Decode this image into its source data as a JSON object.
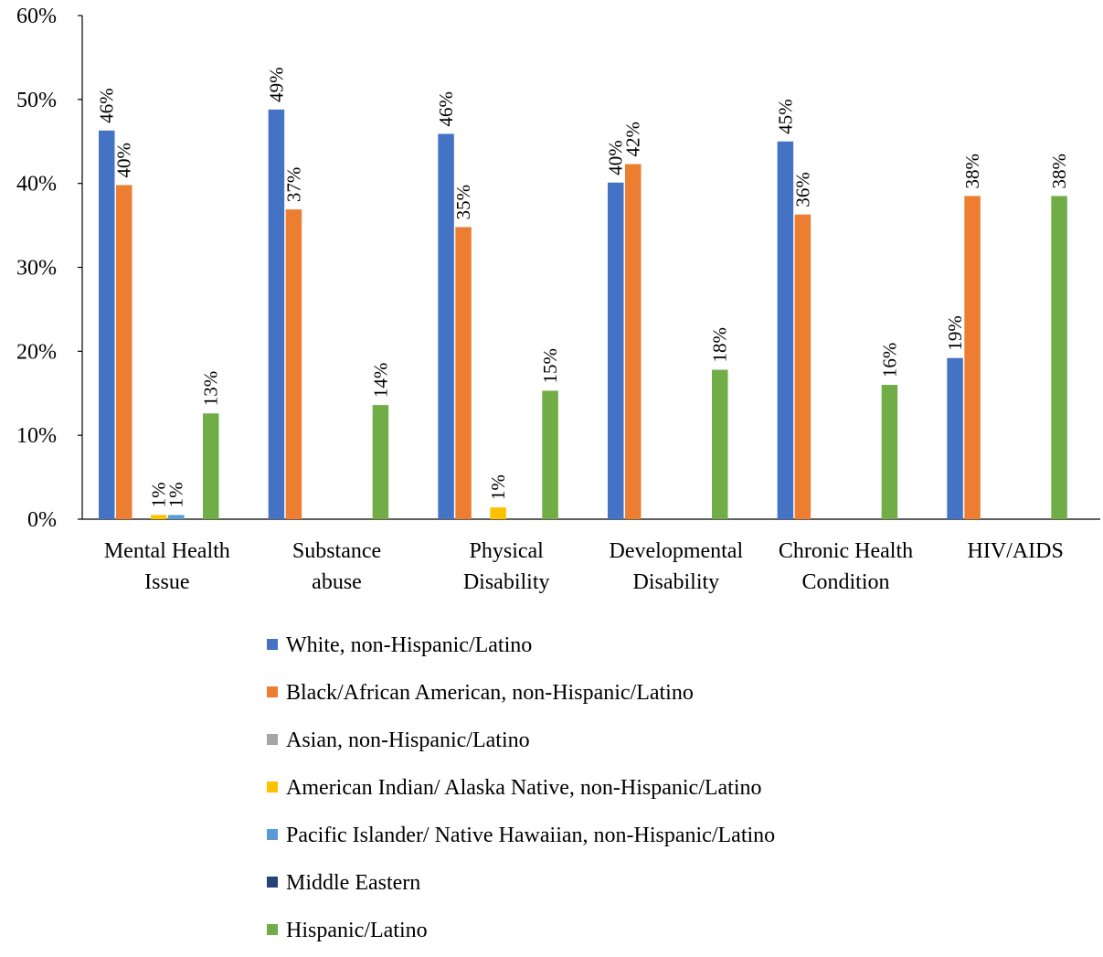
{
  "chart_data": {
    "type": "bar",
    "categories": [
      [
        "Mental Health",
        "Issue"
      ],
      [
        "Substance",
        "abuse"
      ],
      [
        "Physical",
        "Disability"
      ],
      [
        "Developmental",
        "Disability"
      ],
      [
        "Chronic Health",
        "Condition"
      ],
      [
        "HIV/AIDS"
      ]
    ],
    "ylim": [
      0,
      60
    ],
    "yticks": [
      "0%",
      "10%",
      "20%",
      "30%",
      "40%",
      "50%",
      "60%"
    ],
    "yticks_values": [
      0,
      10,
      20,
      30,
      40,
      50,
      60
    ],
    "legend_position": "bottom",
    "grid": false,
    "series": [
      {
        "name": "White, non-Hispanic/Latino",
        "color": "#4472C4",
        "values": [
          46.3,
          48.8,
          45.9,
          40.1,
          45.0,
          19.2
        ],
        "labels": [
          "46%",
          "49%",
          "46%",
          "40%",
          "45%",
          "19%"
        ]
      },
      {
        "name": "Black/African American, non-Hispanic/Latino",
        "color": "#ED7D31",
        "values": [
          39.8,
          36.9,
          34.8,
          42.3,
          36.3,
          38.5
        ],
        "labels": [
          "40%",
          "37%",
          "35%",
          "42%",
          "36%",
          "38%"
        ]
      },
      {
        "name": "Asian, non-Hispanic/Latino",
        "color": "#A5A5A5",
        "values": [
          null,
          null,
          null,
          null,
          null,
          null
        ],
        "labels": [
          null,
          null,
          null,
          null,
          null,
          null
        ]
      },
      {
        "name": "American Indian/ Alaska Native, non-Hispanic/Latino",
        "color": "#FFC000",
        "values": [
          0.5,
          null,
          1.4,
          null,
          null,
          null
        ],
        "labels": [
          "1%",
          null,
          "1%",
          null,
          null,
          null
        ]
      },
      {
        "name": "Pacific Islander/ Native Hawaiian, non-Hispanic/Latino",
        "color": "#5B9BD5",
        "values": [
          0.5,
          null,
          null,
          null,
          null,
          null
        ],
        "labels": [
          "1%",
          null,
          null,
          null,
          null,
          null
        ]
      },
      {
        "name": "Middle Eastern",
        "color": "#264478",
        "values": [
          null,
          null,
          null,
          null,
          null,
          null
        ],
        "labels": [
          null,
          null,
          null,
          null,
          null,
          null
        ]
      },
      {
        "name": "Hispanic/Latino",
        "color": "#70AD47",
        "values": [
          12.6,
          13.6,
          15.3,
          17.8,
          16.0,
          38.5
        ],
        "labels": [
          "13%",
          "14%",
          "15%",
          "18%",
          "16%",
          "38%"
        ]
      }
    ]
  }
}
